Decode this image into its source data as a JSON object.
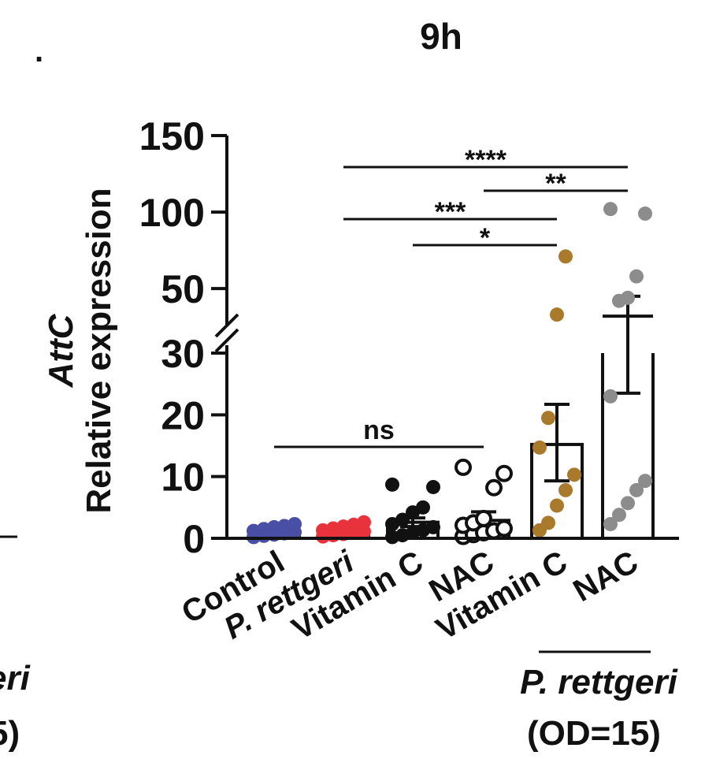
{
  "chart_data": {
    "type": "bar",
    "title": "9h",
    "ylabel_gene": "AttC",
    "ylabel": "Relative expression",
    "y_axis_break": {
      "lower_range": [
        0,
        30
      ],
      "upper_range": [
        30,
        150
      ]
    },
    "yticks": [
      0,
      10,
      20,
      30,
      50,
      100,
      150
    ],
    "categories": [
      "Control",
      "P. rettgeri",
      "Vitamin C",
      "NAC",
      "Vitamin C",
      "NAC"
    ],
    "group_label": "P. rettgeri",
    "group_sublabel": "(OD=15)",
    "series": [
      {
        "values": [
          1.0,
          1.1,
          2.6,
          2.9,
          15.2,
          32.0
        ]
      }
    ],
    "error_bars": [
      [
        0.8,
        1.2
      ],
      [
        0.9,
        1.3
      ],
      [
        1.9,
        3.3
      ],
      [
        1.6,
        4.3
      ],
      [
        9.3,
        21.7
      ],
      [
        23.5,
        45.0
      ]
    ],
    "points": [
      [
        0.2,
        0.4,
        0.6,
        0.8,
        1.0,
        1.2,
        1.5,
        1.8,
        2.0,
        2.3
      ],
      [
        0.3,
        0.5,
        0.7,
        0.9,
        1.1,
        1.3,
        1.6,
        1.9,
        2.2,
        2.6
      ],
      [
        0.2,
        0.5,
        0.9,
        1.3,
        1.8,
        2.3,
        3.0,
        4.2,
        5.0,
        8.3,
        8.7
      ],
      [
        0.3,
        0.6,
        0.9,
        1.2,
        1.6,
        2.1,
        2.5,
        3.2,
        8.2,
        10.5,
        11.5
      ],
      [
        1.3,
        2.5,
        5.3,
        7.8,
        10.3,
        14.7,
        19.5,
        33.0,
        71.0
      ],
      [
        2.3,
        3.8,
        5.7,
        7.8,
        9.3,
        23.0,
        42.0,
        44.0,
        58.0,
        99.0,
        102.0
      ]
    ],
    "point_colors": [
      "#4a4fa6",
      "#e8333c",
      "#111111",
      "#111111",
      "#a97a2c",
      "#8c8c8c"
    ],
    "point_fill": [
      "filled",
      "filled",
      "filled",
      "open",
      "filled",
      "filled"
    ],
    "significance": [
      {
        "from": 1,
        "to": 5,
        "label": "****"
      },
      {
        "from": 3,
        "to": 5,
        "label": "**"
      },
      {
        "from": 1,
        "to": 4,
        "label": "***"
      },
      {
        "from": 2,
        "to": 4,
        "label": "*"
      },
      {
        "from": 0,
        "to": 3,
        "label": "ns"
      }
    ],
    "side_fragments": [
      ".",
      "eri",
      "5)"
    ]
  }
}
